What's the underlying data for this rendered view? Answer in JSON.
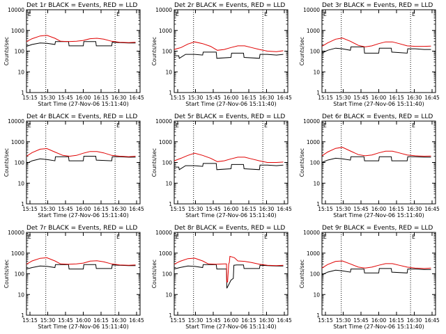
{
  "chart_data": [
    {
      "type": "line",
      "title": "Det 1r BLACK = Events, RED = LLD",
      "xlabel": "Start Time (27-Nov-06 15:11:40)",
      "ylabel": "Counts/sec",
      "yscale": "log",
      "ylim": [
        1,
        10000
      ],
      "xlim": [
        0,
        100
      ],
      "xticks": [
        "15:15",
        "15:30",
        "15:45",
        "16:00",
        "16:15",
        "16:30",
        "16:45"
      ],
      "yticks": [
        "1",
        "10",
        "100",
        "1000",
        "10000"
      ],
      "markers": [
        "E",
        "E"
      ],
      "vlines": [
        17,
        78
      ],
      "series": [
        {
          "color": "#000000",
          "x": [
            0,
            5,
            12,
            18,
            25,
            25.5,
            37,
            37.5,
            50,
            50.5,
            55,
            61,
            61.5,
            75,
            75.5,
            82,
            90,
            96
          ],
          "y": [
            170,
            210,
            250,
            240,
            210,
            290,
            290,
            180,
            180,
            290,
            290,
            290,
            180,
            180,
            270,
            260,
            250,
            250
          ]
        },
        {
          "color": "#e00000",
          "x": [
            0,
            5,
            12,
            18,
            25,
            30,
            37,
            44,
            50,
            56,
            62,
            68,
            75,
            82,
            90,
            96
          ],
          "y": [
            290,
            400,
            540,
            580,
            420,
            300,
            290,
            300,
            330,
            400,
            420,
            380,
            300,
            270,
            260,
            270
          ]
        }
      ]
    },
    {
      "type": "line",
      "title": "Det 2r BLACK = Events, RED = LLD",
      "xlabel": "Start Time (27-Nov-06 15:11:40)",
      "ylabel": "Counts/sec",
      "yscale": "log",
      "ylim": [
        1,
        10000
      ],
      "xlim": [
        0,
        100
      ],
      "xticks": [
        "15:15",
        "15:30",
        "15:45",
        "16:00",
        "16:15",
        "16:30",
        "16:45"
      ],
      "yticks": [
        "1",
        "10",
        "100",
        "1000",
        "10000"
      ],
      "markers": [
        "E",
        "E"
      ],
      "vlines": [
        17,
        78
      ],
      "series": [
        {
          "color": "#000000",
          "x": [
            0,
            4,
            4.5,
            10,
            18,
            25,
            25.5,
            37,
            37.5,
            50,
            50.5,
            55,
            61,
            61.5,
            75,
            75.5,
            82,
            90,
            96
          ],
          "y": [
            60,
            60,
            45,
            70,
            70,
            65,
            90,
            90,
            45,
            50,
            80,
            80,
            80,
            50,
            45,
            70,
            70,
            65,
            70
          ]
        },
        {
          "color": "#e00000",
          "x": [
            0,
            6,
            12,
            18,
            25,
            32,
            38,
            44,
            50,
            56,
            62,
            68,
            75,
            82,
            90,
            96
          ],
          "y": [
            120,
            150,
            220,
            280,
            230,
            170,
            110,
            120,
            150,
            180,
            180,
            150,
            120,
            100,
            95,
            105
          ]
        }
      ]
    },
    {
      "type": "line",
      "title": "Det 3r BLACK = Events, RED = LLD",
      "xlabel": "Start Time (27-Nov-06 15:11:40)",
      "ylabel": "Counts/sec",
      "yscale": "log",
      "ylim": [
        1,
        10000
      ],
      "xlim": [
        0,
        100
      ],
      "xticks": [
        "15:15",
        "15:30",
        "15:45",
        "16:00",
        "16:15",
        "16:30",
        "16:45"
      ],
      "yticks": [
        "1",
        "10",
        "100",
        "1000",
        "10000"
      ],
      "markers": [
        "E",
        "E"
      ],
      "vlines": [
        17,
        78
      ],
      "series": [
        {
          "color": "#000000",
          "x": [
            0,
            5,
            12,
            18,
            25,
            25.5,
            37,
            37.5,
            50,
            50.5,
            55,
            61,
            61.5,
            75,
            75.5,
            82,
            90,
            96
          ],
          "y": [
            80,
            110,
            140,
            130,
            110,
            160,
            160,
            80,
            80,
            140,
            140,
            140,
            90,
            80,
            130,
            130,
            120,
            120
          ]
        },
        {
          "color": "#e00000",
          "x": [
            0,
            5,
            12,
            18,
            25,
            32,
            38,
            44,
            50,
            56,
            62,
            68,
            75,
            82,
            90,
            96
          ],
          "y": [
            170,
            250,
            380,
            430,
            300,
            190,
            160,
            180,
            230,
            280,
            280,
            230,
            180,
            170,
            170,
            175
          ]
        }
      ]
    },
    {
      "type": "line",
      "title": "Det 4r BLACK = Events, RED = LLD",
      "xlabel": "Start Time (27-Nov-06 15:11:40)",
      "ylabel": "Counts/sec",
      "yscale": "log",
      "ylim": [
        1,
        10000
      ],
      "xlim": [
        0,
        100
      ],
      "xticks": [
        "15:15",
        "15:30",
        "15:45",
        "16:00",
        "16:15",
        "16:30",
        "16:45"
      ],
      "yticks": [
        "1",
        "10",
        "100",
        "1000",
        "10000"
      ],
      "markers": [
        "E",
        "E"
      ],
      "vlines": [
        17,
        78
      ],
      "series": [
        {
          "color": "#000000",
          "x": [
            0,
            5,
            12,
            18,
            25,
            25.5,
            37,
            37.5,
            50,
            50.5,
            55,
            61,
            61.5,
            75,
            75.5,
            82,
            90,
            96
          ],
          "y": [
            90,
            120,
            150,
            140,
            120,
            190,
            190,
            120,
            120,
            200,
            200,
            200,
            130,
            120,
            190,
            190,
            180,
            180
          ]
        },
        {
          "color": "#e00000",
          "x": [
            0,
            5,
            12,
            18,
            25,
            32,
            38,
            44,
            50,
            56,
            62,
            68,
            75,
            82,
            90,
            96
          ],
          "y": [
            200,
            300,
            440,
            470,
            320,
            220,
            200,
            220,
            280,
            340,
            340,
            290,
            220,
            200,
            190,
            200
          ]
        }
      ]
    },
    {
      "type": "line",
      "title": "Det 5r BLACK = Events, RED = LLD",
      "xlabel": "Start Time (27-Nov-06 15:11:40)",
      "ylabel": "Counts/sec",
      "yscale": "log",
      "ylim": [
        1,
        10000
      ],
      "xlim": [
        0,
        100
      ],
      "xticks": [
        "15:15",
        "15:30",
        "15:45",
        "16:00",
        "16:15",
        "16:30",
        "16:45"
      ],
      "yticks": [
        "1",
        "10",
        "100",
        "1000",
        "10000"
      ],
      "markers": [
        "E",
        "E"
      ],
      "vlines": [
        17,
        78
      ],
      "series": [
        {
          "color": "#000000",
          "x": [
            0,
            4,
            4.5,
            10,
            18,
            25,
            25.5,
            37,
            37.5,
            50,
            50.5,
            55,
            61,
            61.5,
            75,
            75.5,
            82,
            90,
            96
          ],
          "y": [
            60,
            60,
            45,
            70,
            70,
            65,
            90,
            90,
            45,
            50,
            80,
            80,
            80,
            50,
            45,
            75,
            75,
            70,
            75
          ]
        },
        {
          "color": "#e00000",
          "x": [
            0,
            6,
            12,
            18,
            25,
            32,
            38,
            44,
            50,
            56,
            62,
            68,
            75,
            82,
            90,
            96
          ],
          "y": [
            120,
            160,
            220,
            280,
            220,
            160,
            110,
            120,
            150,
            180,
            180,
            150,
            120,
            100,
            100,
            105
          ]
        }
      ]
    },
    {
      "type": "line",
      "title": "Det 6r BLACK = Events, RED = LLD",
      "xlabel": "Start Time (27-Nov-06 15:11:40)",
      "ylabel": "Counts/sec",
      "yscale": "log",
      "ylim": [
        1,
        10000
      ],
      "xlim": [
        0,
        100
      ],
      "xticks": [
        "15:15",
        "15:30",
        "15:45",
        "16:00",
        "16:15",
        "16:30",
        "16:45"
      ],
      "yticks": [
        "1",
        "10",
        "100",
        "1000",
        "10000"
      ],
      "markers": [
        "E",
        "E"
      ],
      "vlines": [
        17,
        78
      ],
      "series": [
        {
          "color": "#000000",
          "x": [
            0,
            5,
            12,
            18,
            25,
            25.5,
            37,
            37.5,
            50,
            50.5,
            55,
            61,
            61.5,
            75,
            75.5,
            82,
            90,
            96
          ],
          "y": [
            100,
            130,
            160,
            150,
            130,
            190,
            190,
            120,
            120,
            190,
            190,
            190,
            120,
            120,
            190,
            190,
            180,
            180
          ]
        },
        {
          "color": "#e00000",
          "x": [
            0,
            5,
            12,
            18,
            25,
            32,
            38,
            44,
            50,
            56,
            62,
            68,
            75,
            82,
            90,
            96
          ],
          "y": [
            210,
            320,
            480,
            540,
            360,
            240,
            210,
            230,
            290,
            350,
            350,
            290,
            230,
            210,
            200,
            205
          ]
        }
      ]
    },
    {
      "type": "line",
      "title": "Det 7r BLACK = Events, RED = LLD",
      "xlabel": "Start Time (27-Nov-06 15:11:40)",
      "ylabel": "Counts/sec",
      "yscale": "log",
      "ylim": [
        1,
        10000
      ],
      "xlim": [
        0,
        100
      ],
      "xticks": [
        "15:15",
        "15:30",
        "15:45",
        "16:00",
        "16:15",
        "16:30",
        "16:45"
      ],
      "yticks": [
        "1",
        "10",
        "100",
        "1000",
        "10000"
      ],
      "markers": [
        "E",
        "E"
      ],
      "vlines": [
        17,
        78
      ],
      "series": [
        {
          "color": "#000000",
          "x": [
            0,
            5,
            12,
            18,
            25,
            25.5,
            37,
            37.5,
            50,
            50.5,
            55,
            61,
            61.5,
            75,
            75.5,
            82,
            90,
            96
          ],
          "y": [
            170,
            200,
            240,
            230,
            200,
            280,
            280,
            170,
            170,
            280,
            280,
            280,
            180,
            180,
            270,
            260,
            250,
            250
          ]
        },
        {
          "color": "#e00000",
          "x": [
            0,
            5,
            12,
            18,
            25,
            30,
            37,
            44,
            50,
            56,
            62,
            68,
            75,
            82,
            90,
            96
          ],
          "y": [
            290,
            420,
            560,
            600,
            420,
            300,
            290,
            300,
            330,
            410,
            430,
            380,
            300,
            270,
            260,
            270
          ]
        }
      ]
    },
    {
      "type": "line",
      "title": "Det 8r BLACK = Events, RED = LLD",
      "xlabel": "Start Time (27-Nov-06 15:11:40)",
      "ylabel": "Counts/sec",
      "yscale": "log",
      "ylim": [
        1,
        10000
      ],
      "xlim": [
        0,
        100
      ],
      "xticks": [
        "15:15",
        "15:30",
        "15:45",
        "16:00",
        "16:15",
        "16:30",
        "16:45"
      ],
      "yticks": [
        "1",
        "10",
        "100",
        "1000",
        "10000"
      ],
      "markers": [
        "E",
        "E"
      ],
      "vlines": [
        17,
        78
      ],
      "series": [
        {
          "color": "#000000",
          "x": [
            0,
            5,
            12,
            18,
            25,
            25.5,
            37,
            37.5,
            46,
            46.3,
            48,
            50,
            52,
            52.5,
            55,
            61,
            61.5,
            75,
            75.5,
            82,
            90,
            96
          ],
          "y": [
            170,
            200,
            240,
            230,
            200,
            280,
            280,
            170,
            170,
            20,
            30,
            50,
            60,
            260,
            270,
            270,
            180,
            180,
            260,
            250,
            240,
            240
          ]
        },
        {
          "color": "#e00000",
          "x": [
            0,
            5,
            12,
            18,
            25,
            30,
            37,
            44,
            46,
            46.3,
            47,
            48,
            48.5,
            49,
            51,
            53,
            56,
            62,
            68,
            75,
            82,
            90,
            96
          ],
          "y": [
            290,
            400,
            540,
            570,
            420,
            300,
            290,
            300,
            300,
            40,
            40,
            300,
            350,
            700,
            650,
            600,
            420,
            400,
            350,
            290,
            260,
            250,
            260
          ]
        }
      ]
    },
    {
      "type": "line",
      "title": "Det 9r BLACK = Events, RED = LLD",
      "xlabel": "Start Time (27-Nov-06 15:11:40)",
      "ylabel": "Counts/sec",
      "yscale": "log",
      "ylim": [
        1,
        10000
      ],
      "xlim": [
        0,
        100
      ],
      "xticks": [
        "15:15",
        "15:30",
        "15:45",
        "16:00",
        "16:15",
        "16:30",
        "16:45"
      ],
      "yticks": [
        "1",
        "10",
        "100",
        "1000",
        "10000"
      ],
      "markers": [
        "E",
        "E"
      ],
      "vlines": [
        17,
        78
      ],
      "series": [
        {
          "color": "#000000",
          "x": [
            0,
            5,
            12,
            18,
            25,
            25.5,
            37,
            37.5,
            50,
            50.5,
            55,
            61,
            61.5,
            75,
            75.5,
            82,
            90,
            96
          ],
          "y": [
            90,
            120,
            150,
            140,
            120,
            170,
            170,
            110,
            110,
            180,
            180,
            180,
            120,
            110,
            170,
            170,
            160,
            160
          ]
        },
        {
          "color": "#e00000",
          "x": [
            0,
            5,
            12,
            18,
            25,
            32,
            38,
            44,
            50,
            56,
            62,
            68,
            75,
            82,
            90,
            96
          ],
          "y": [
            190,
            280,
            400,
            420,
            300,
            210,
            190,
            210,
            260,
            310,
            310,
            260,
            210,
            190,
            180,
            190
          ]
        }
      ]
    }
  ]
}
